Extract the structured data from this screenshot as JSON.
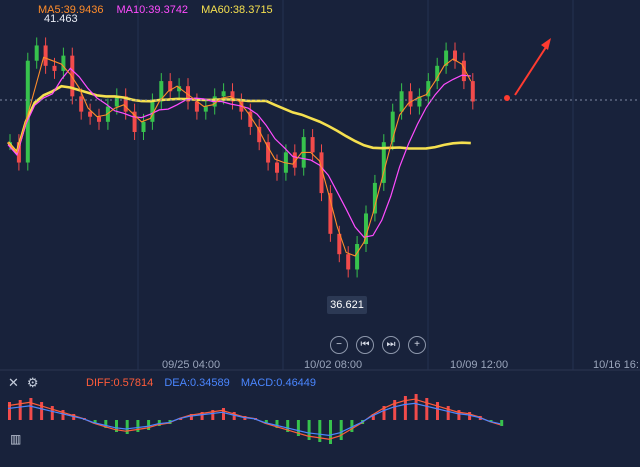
{
  "legend": {
    "ma5": {
      "label": "MA5:39.9436",
      "color": "#ff8c2a"
    },
    "ma10": {
      "label": "MA10:39.3742",
      "color": "#ff4cff"
    },
    "ma60": {
      "label": "MA60:38.3715",
      "color": "#f5e04f"
    }
  },
  "price_labels": {
    "high": "41.463",
    "low": "36.621"
  },
  "x_axis": {
    "labels": [
      "09/25 04:00",
      "10/02 08:00",
      "10/09 12:00",
      "10/16 16:"
    ]
  },
  "controls": {
    "zoom_out": "−",
    "prev": "⏮",
    "next": "⏭",
    "zoom_in": "+"
  },
  "macd": {
    "diff": {
      "label": "DIFF:0.57814",
      "color": "#ff5c3a"
    },
    "dea": {
      "label": "DEA:0.34589",
      "color": "#4a86ff"
    },
    "macd": {
      "label": "MACD:0.46449",
      "color": "#4a86ff"
    }
  },
  "tools": {
    "close_icon": "close-icon",
    "settings_icon": "gear-icon",
    "chart_icon": "bar-chart-icon"
  },
  "chart_data": [
    {
      "type": "candlestick",
      "title": "",
      "series": [
        {
          "name": "MA5:39.9436",
          "values": []
        },
        {
          "name": "MA10:39.3742",
          "values": []
        },
        {
          "name": "MA60:38.3715",
          "values": []
        }
      ],
      "x_tick_labels": [
        "09/25 04:00",
        "10/02 08:00",
        "10/09 12:00",
        "10/16 16:"
      ],
      "y_labels": [
        "41.463",
        "36.621"
      ],
      "ylim": [
        36.3,
        41.8
      ],
      "candles": [
        39.4,
        39.0,
        41.0,
        41.3,
        40.9,
        40.8,
        41.1,
        40.3,
        40.0,
        39.9,
        39.8,
        40.1,
        40.3,
        40.0,
        39.6,
        39.8,
        40.2,
        40.6,
        40.4,
        40.5,
        40.2,
        40.0,
        40.1,
        40.3,
        40.4,
        40.2,
        40.0,
        39.7,
        39.4,
        39.0,
        38.8,
        39.2,
        38.9,
        39.5,
        39.2,
        38.4,
        37.6,
        37.2,
        36.9,
        37.4,
        38.0,
        38.6,
        39.4,
        40.0,
        40.4,
        40.1,
        40.3,
        40.6,
        40.9,
        41.2,
        41.0,
        40.6,
        40.2
      ],
      "grid": true
    },
    {
      "type": "bar",
      "title": "",
      "series": [
        {
          "name": "DIFF:0.57814",
          "values": []
        },
        {
          "name": "DEA:0.34589",
          "values": []
        },
        {
          "name": "MACD:0.46449",
          "values": []
        }
      ],
      "histogram": [
        0.9,
        1.0,
        1.1,
        0.9,
        0.7,
        0.5,
        0.3,
        0.1,
        -0.2,
        -0.4,
        -0.6,
        -0.7,
        -0.6,
        -0.5,
        -0.3,
        -0.2,
        0.1,
        0.3,
        0.4,
        0.5,
        0.6,
        0.4,
        0.2,
        0.1,
        -0.2,
        -0.4,
        -0.6,
        -0.8,
        -1.0,
        -1.1,
        -1.2,
        -1.0,
        -0.6,
        -0.2,
        0.3,
        0.7,
        1.0,
        1.2,
        1.3,
        1.1,
        0.9,
        0.7,
        0.5,
        0.4,
        0.2,
        -0.1,
        -0.3
      ]
    }
  ]
}
